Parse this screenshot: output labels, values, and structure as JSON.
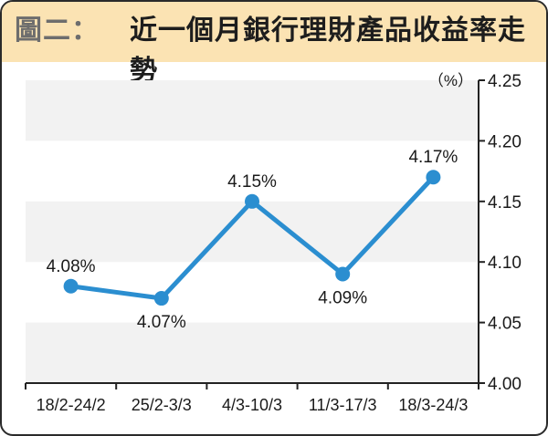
{
  "title": {
    "prefix": "圖二：",
    "main": "近一個月銀行理財產品收益率走勢"
  },
  "colors": {
    "title_bg": "#fbe3b3",
    "line": "#2b8ed0",
    "band": "#f2f2f2"
  },
  "chart_data": {
    "type": "line",
    "title": "近一個月銀行理財產品收益率走勢",
    "unit_label": "（%）",
    "categories": [
      "18/2-24/2",
      "25/2-3/3",
      "4/3-10/3",
      "11/3-17/3",
      "18/3-24/3"
    ],
    "series": [
      {
        "values": [
          4.08,
          4.07,
          4.15,
          4.09,
          4.17
        ]
      }
    ],
    "data_labels": [
      "4.08%",
      "4.07%",
      "4.15%",
      "4.09%",
      "4.17%"
    ],
    "y_ticks": [
      "4.25",
      "4.20",
      "4.15",
      "4.10",
      "4.05",
      "4.00"
    ],
    "ylim": [
      4.0,
      4.25
    ],
    "y_axis_side": "right",
    "grid": "alternating bands"
  }
}
